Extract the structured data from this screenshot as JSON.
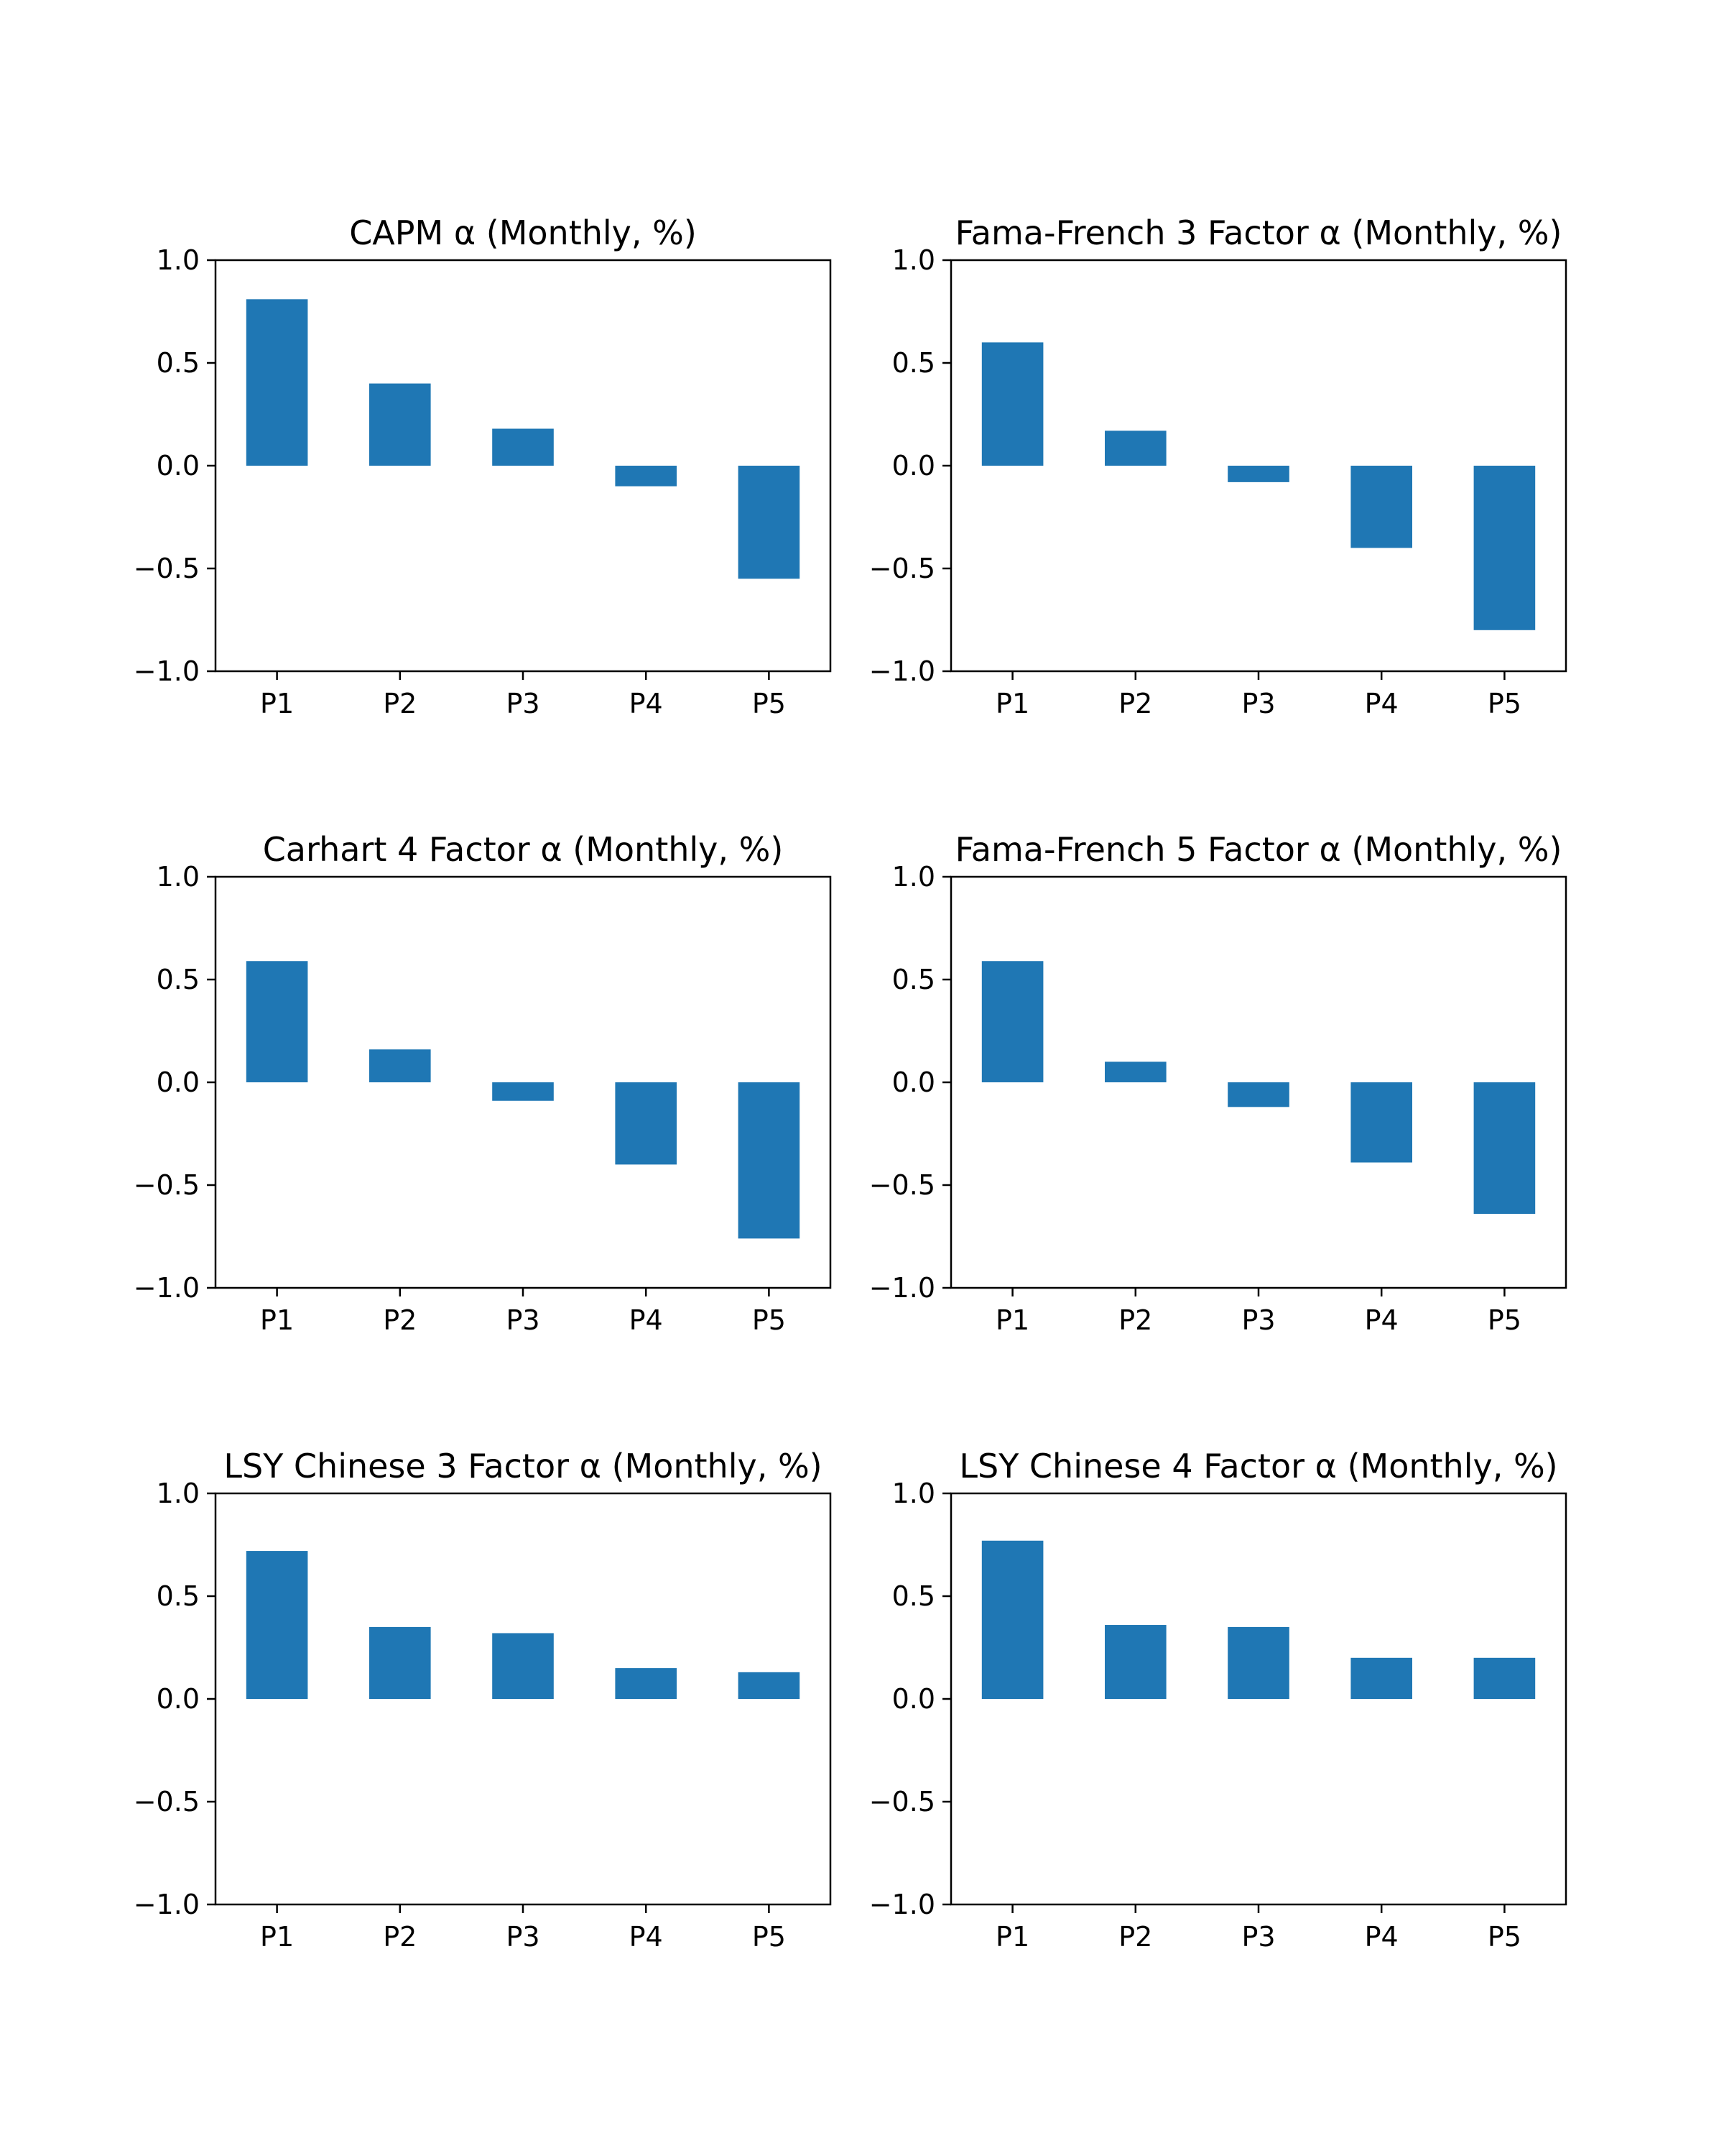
{
  "chart_data": [
    {
      "type": "bar",
      "title": "CAPM α (Monthly, %)",
      "categories": [
        "P1",
        "P2",
        "P3",
        "P4",
        "P5"
      ],
      "values": [
        0.81,
        0.4,
        0.18,
        -0.1,
        -0.55
      ],
      "ylim": [
        -1.0,
        1.0
      ],
      "yticks": [
        "−1.0",
        "−0.5",
        "0.0",
        "0.5",
        "1.0"
      ],
      "color": "#1f77b4",
      "grid": false
    },
    {
      "type": "bar",
      "title": "Fama-French 3 Factor α (Monthly, %)",
      "categories": [
        "P1",
        "P2",
        "P3",
        "P4",
        "P5"
      ],
      "values": [
        0.6,
        0.17,
        -0.08,
        -0.4,
        -0.8
      ],
      "ylim": [
        -1.0,
        1.0
      ],
      "yticks": [
        "−1.0",
        "−0.5",
        "0.0",
        "0.5",
        "1.0"
      ],
      "color": "#1f77b4",
      "grid": false
    },
    {
      "type": "bar",
      "title": "Carhart 4 Factor α (Monthly, %)",
      "categories": [
        "P1",
        "P2",
        "P3",
        "P4",
        "P5"
      ],
      "values": [
        0.59,
        0.16,
        -0.09,
        -0.4,
        -0.76
      ],
      "ylim": [
        -1.0,
        1.0
      ],
      "yticks": [
        "−1.0",
        "−0.5",
        "0.0",
        "0.5",
        "1.0"
      ],
      "color": "#1f77b4",
      "grid": false
    },
    {
      "type": "bar",
      "title": "Fama-French 5 Factor α (Monthly, %)",
      "categories": [
        "P1",
        "P2",
        "P3",
        "P4",
        "P5"
      ],
      "values": [
        0.59,
        0.1,
        -0.12,
        -0.39,
        -0.64
      ],
      "ylim": [
        -1.0,
        1.0
      ],
      "yticks": [
        "−1.0",
        "−0.5",
        "0.0",
        "0.5",
        "1.0"
      ],
      "color": "#1f77b4",
      "grid": false
    },
    {
      "type": "bar",
      "title": "LSY Chinese 3 Factor α (Monthly, %)",
      "categories": [
        "P1",
        "P2",
        "P3",
        "P4",
        "P5"
      ],
      "values": [
        0.72,
        0.35,
        0.32,
        0.15,
        0.13
      ],
      "ylim": [
        -1.0,
        1.0
      ],
      "yticks": [
        "−1.0",
        "−0.5",
        "0.0",
        "0.5",
        "1.0"
      ],
      "color": "#1f77b4",
      "grid": false
    },
    {
      "type": "bar",
      "title": "LSY Chinese 4 Factor α (Monthly, %)",
      "categories": [
        "P1",
        "P2",
        "P3",
        "P4",
        "P5"
      ],
      "values": [
        0.77,
        0.36,
        0.35,
        0.2,
        0.2
      ],
      "ylim": [
        -1.0,
        1.0
      ],
      "yticks": [
        "−1.0",
        "−0.5",
        "0.0",
        "0.5",
        "1.0"
      ],
      "color": "#1f77b4",
      "grid": false
    }
  ]
}
